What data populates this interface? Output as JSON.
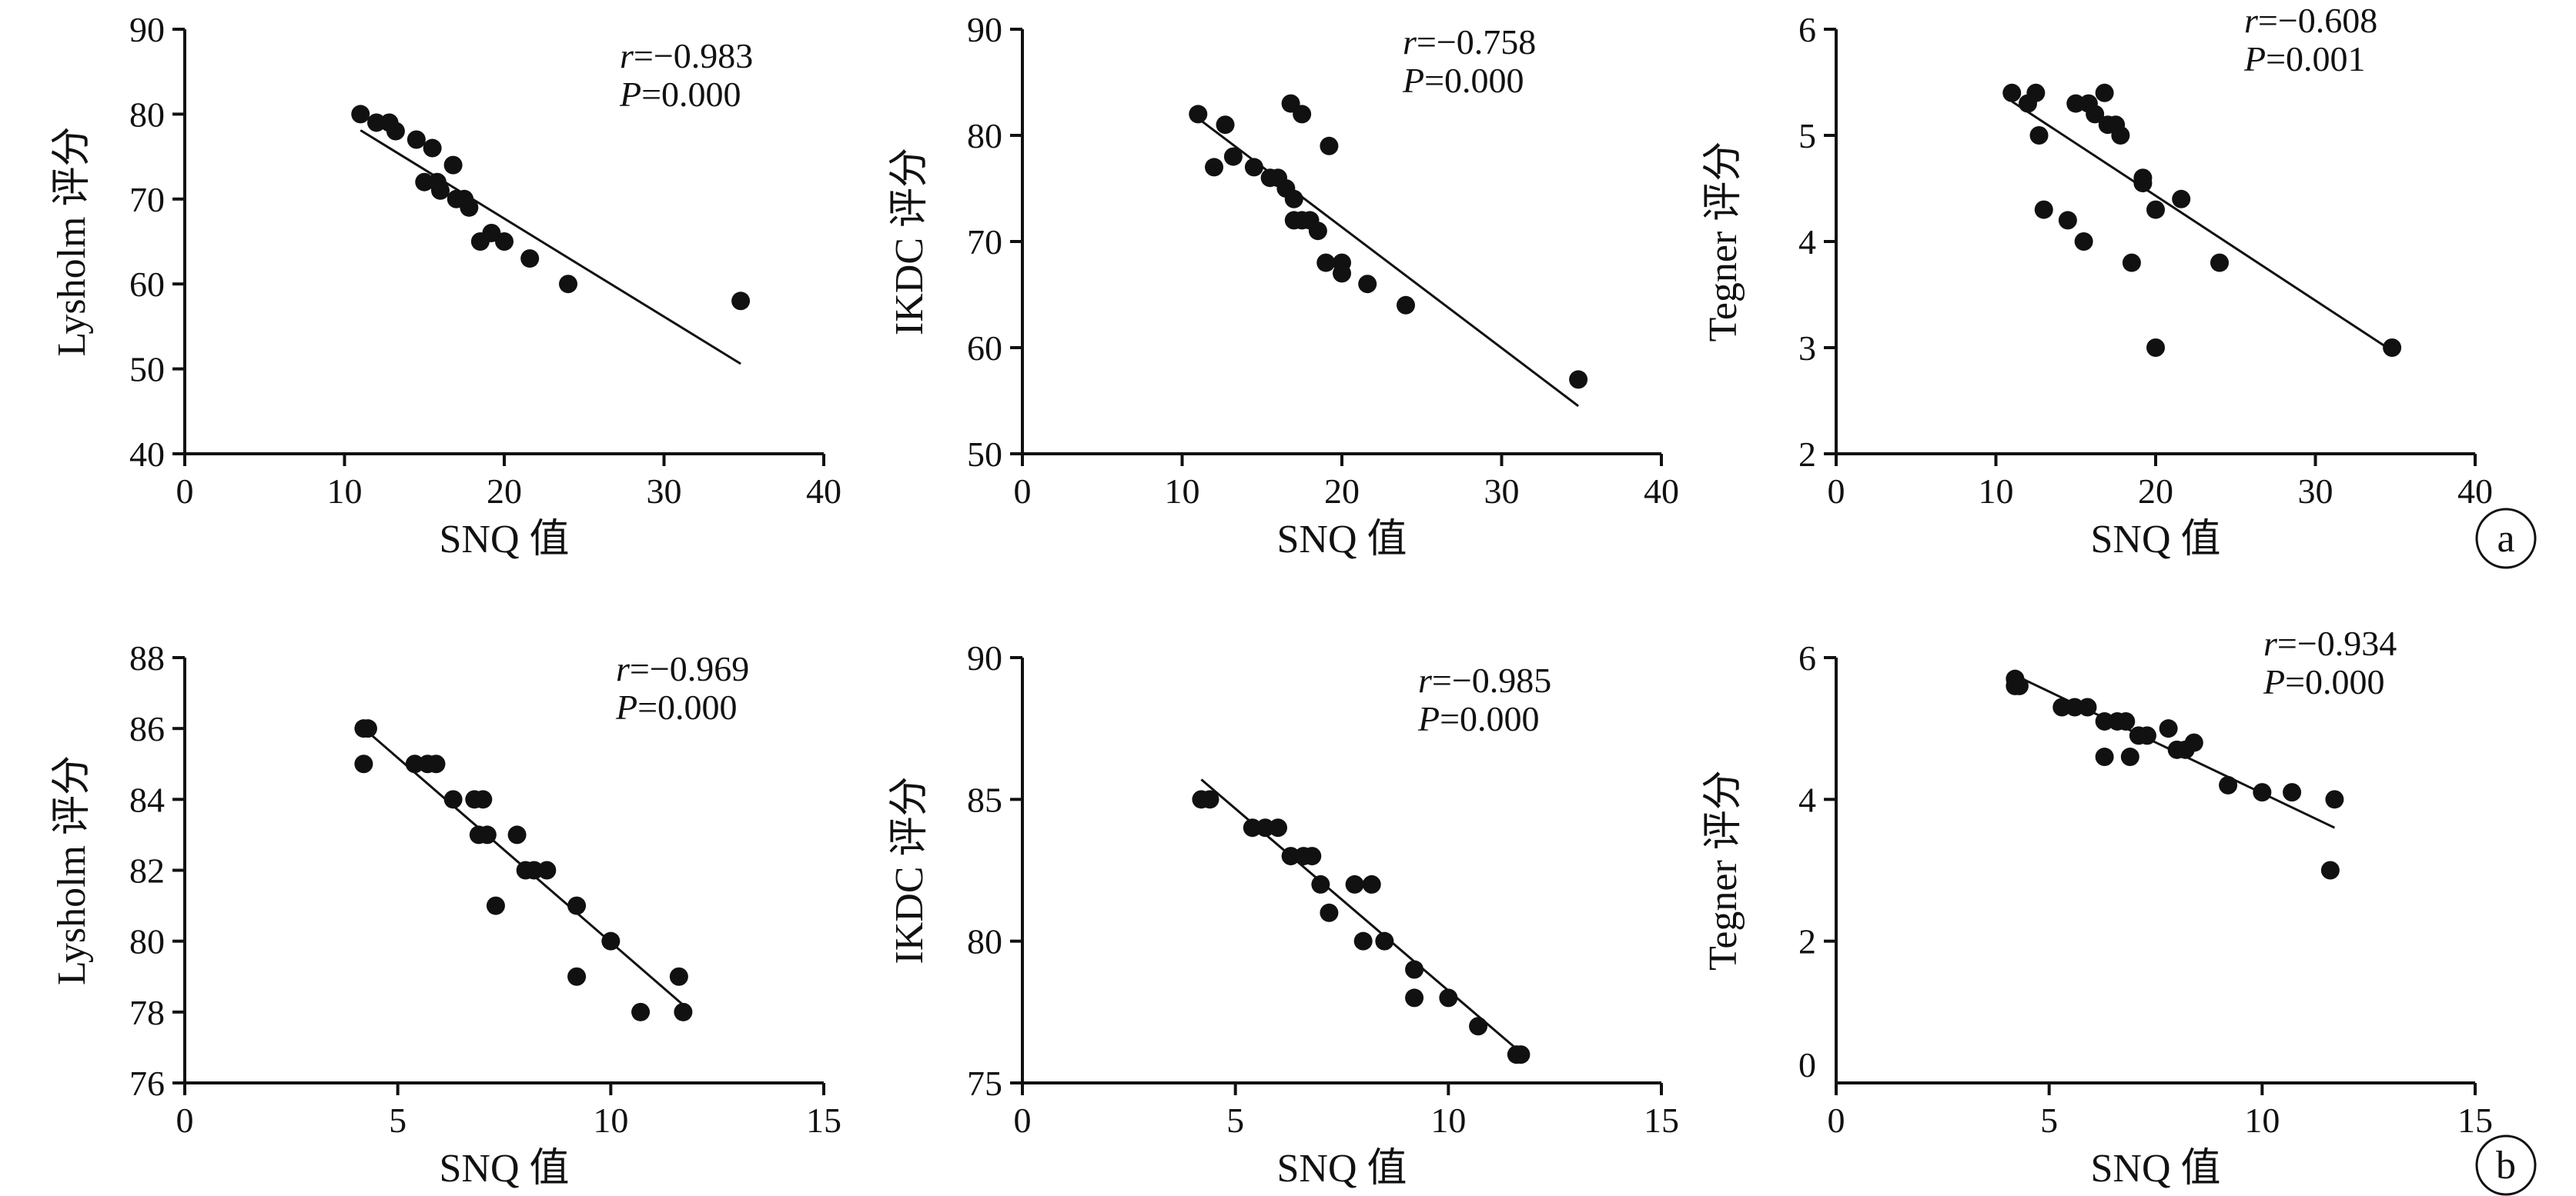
{
  "panel_markers": [
    "a",
    "b"
  ],
  "chart_data": [
    {
      "type": "scatter",
      "xlabel": "SNQ 值",
      "ylabel": "Lysholm 评分",
      "xlim": [
        0,
        40
      ],
      "ylim": [
        40,
        90
      ],
      "xticks": [
        "0",
        "10",
        "20",
        "30",
        "40"
      ],
      "yticks": [
        "40",
        "50",
        "60",
        "70",
        "80",
        "90"
      ],
      "stats": {
        "r": "r=−0.983",
        "p": "P=0.000"
      },
      "points": [
        [
          11,
          80
        ],
        [
          12,
          79
        ],
        [
          12.8,
          79
        ],
        [
          13.2,
          78
        ],
        [
          14.5,
          77
        ],
        [
          15.5,
          76
        ],
        [
          15,
          72
        ],
        [
          15.8,
          72
        ],
        [
          16,
          71
        ],
        [
          16.8,
          74
        ],
        [
          17,
          70
        ],
        [
          17.5,
          70
        ],
        [
          17.8,
          69
        ],
        [
          18.5,
          65
        ],
        [
          19.2,
          66
        ],
        [
          20,
          65
        ],
        [
          21.6,
          63
        ],
        [
          24,
          60
        ],
        [
          34.8,
          58
        ]
      ],
      "fit": [
        [
          11,
          78.1
        ],
        [
          34.8,
          50.6
        ]
      ]
    },
    {
      "type": "scatter",
      "xlabel": "SNQ 值",
      "ylabel": "IKDC 评分",
      "xlim": [
        0,
        40
      ],
      "ylim": [
        50,
        90
      ],
      "xticks": [
        "0",
        "10",
        "20",
        "30",
        "40"
      ],
      "yticks": [
        "50",
        "60",
        "70",
        "80",
        "90"
      ],
      "stats": {
        "r": "r=−0.758",
        "p": "P=0.000"
      },
      "points": [
        [
          11,
          82
        ],
        [
          12,
          77
        ],
        [
          12.7,
          81
        ],
        [
          13.2,
          78
        ],
        [
          14.5,
          77
        ],
        [
          15.5,
          76
        ],
        [
          16,
          76
        ],
        [
          16.5,
          75
        ],
        [
          17,
          74
        ],
        [
          16.8,
          83
        ],
        [
          17.5,
          82
        ],
        [
          17,
          72
        ],
        [
          17.5,
          72
        ],
        [
          18,
          72
        ],
        [
          18.5,
          71
        ],
        [
          19,
          68
        ],
        [
          19.2,
          79
        ],
        [
          20,
          68
        ],
        [
          20,
          67
        ],
        [
          21.6,
          66
        ],
        [
          24,
          64
        ],
        [
          34.8,
          57
        ]
      ],
      "fit": [
        [
          11,
          81.6
        ],
        [
          34.8,
          54.5
        ]
      ]
    },
    {
      "type": "scatter",
      "xlabel": "SNQ 值",
      "ylabel": "Tegner 评分",
      "xlim": [
        0,
        40
      ],
      "ylim": [
        2,
        6
      ],
      "xticks": [
        "0",
        "10",
        "20",
        "30",
        "40"
      ],
      "yticks": [
        "2",
        "3",
        "4",
        "5",
        "6"
      ],
      "stats": {
        "r": "r=−0.608",
        "p": "P=0.001"
      },
      "points": [
        [
          11,
          5.4
        ],
        [
          12,
          5.3
        ],
        [
          12.5,
          5.4
        ],
        [
          12.7,
          5.0
        ],
        [
          13,
          4.3
        ],
        [
          14.5,
          4.2
        ],
        [
          15,
          5.3
        ],
        [
          15.5,
          4.0
        ],
        [
          15.8,
          5.3
        ],
        [
          16.2,
          5.2
        ],
        [
          16.8,
          5.4
        ],
        [
          17,
          5.1
        ],
        [
          17.5,
          5.1
        ],
        [
          17.8,
          5.0
        ],
        [
          18.5,
          3.8
        ],
        [
          19.2,
          4.6
        ],
        [
          19.2,
          4.55
        ],
        [
          20,
          4.3
        ],
        [
          20,
          3.0
        ],
        [
          21.6,
          4.4
        ],
        [
          24,
          3.8
        ],
        [
          34.8,
          3.0
        ]
      ],
      "fit": [
        [
          11,
          5.32
        ],
        [
          34.8,
          2.97
        ]
      ]
    },
    {
      "type": "scatter",
      "xlabel": "SNQ 值",
      "ylabel": "Lysholm 评分",
      "xlim": [
        0,
        15
      ],
      "ylim": [
        76,
        88
      ],
      "xticks": [
        "0",
        "5",
        "10",
        "15"
      ],
      "yticks": [
        "76",
        "78",
        "80",
        "82",
        "84",
        "86",
        "88"
      ],
      "stats": {
        "r": "r=−0.969",
        "p": "P=0.000"
      },
      "points": [
        [
          4.2,
          86
        ],
        [
          4.3,
          86
        ],
        [
          4.2,
          85
        ],
        [
          5.4,
          85
        ],
        [
          5.7,
          85
        ],
        [
          5.9,
          85
        ],
        [
          6.3,
          84
        ],
        [
          6.8,
          84
        ],
        [
          7,
          84
        ],
        [
          6.9,
          83
        ],
        [
          7.1,
          83
        ],
        [
          7.3,
          81
        ],
        [
          7.8,
          83
        ],
        [
          8,
          82
        ],
        [
          8.2,
          82
        ],
        [
          8.5,
          82
        ],
        [
          9.2,
          81
        ],
        [
          9.2,
          79
        ],
        [
          10,
          80
        ],
        [
          10.7,
          78
        ],
        [
          11.6,
          79
        ],
        [
          11.7,
          78
        ]
      ],
      "fit": [
        [
          4.3,
          85.9
        ],
        [
          11.7,
          78.2
        ]
      ]
    },
    {
      "type": "scatter",
      "xlabel": "SNQ 值",
      "ylabel": "IKDC 评分",
      "xlim": [
        0,
        15
      ],
      "ylim": [
        75,
        90
      ],
      "xticks": [
        "0",
        "5",
        "10",
        "15"
      ],
      "yticks": [
        "75",
        "80",
        "85",
        "90"
      ],
      "stats": {
        "r": "r=−0.985",
        "p": "P=0.000"
      },
      "points": [
        [
          4.2,
          85
        ],
        [
          4.4,
          85
        ],
        [
          5.4,
          84
        ],
        [
          5.7,
          84
        ],
        [
          6,
          84
        ],
        [
          6.3,
          83
        ],
        [
          6.6,
          83
        ],
        [
          6.8,
          83
        ],
        [
          7,
          82
        ],
        [
          7.2,
          81
        ],
        [
          7.8,
          82
        ],
        [
          8,
          80
        ],
        [
          8.2,
          82
        ],
        [
          8.5,
          80
        ],
        [
          9.2,
          79
        ],
        [
          9.2,
          78
        ],
        [
          10,
          78
        ],
        [
          10.7,
          77
        ],
        [
          11.6,
          76
        ],
        [
          11.7,
          76
        ]
      ],
      "fit": [
        [
          4.2,
          85.7
        ],
        [
          11.6,
          76.2
        ]
      ]
    },
    {
      "type": "scatter",
      "xlabel": "SNQ 值",
      "ylabel": "Tegner 评分",
      "xlim": [
        0,
        15
      ],
      "ylim": [
        0,
        6
      ],
      "xticks": [
        "0",
        "5",
        "10",
        "15"
      ],
      "yticks": [
        "0",
        "2",
        "4",
        "6"
      ],
      "stats": {
        "r": "r=−0.934",
        "p": "P=0.000"
      },
      "points": [
        [
          4.2,
          5.7
        ],
        [
          4.2,
          5.6
        ],
        [
          4.3,
          5.6
        ],
        [
          5.3,
          5.3
        ],
        [
          5.6,
          5.3
        ],
        [
          5.9,
          5.3
        ],
        [
          6.3,
          5.1
        ],
        [
          6.3,
          4.6
        ],
        [
          6.6,
          5.1
        ],
        [
          6.8,
          5.1
        ],
        [
          6.9,
          4.6
        ],
        [
          7.1,
          4.9
        ],
        [
          7.3,
          4.9
        ],
        [
          7.8,
          5.0
        ],
        [
          8,
          4.7
        ],
        [
          8.2,
          4.7
        ],
        [
          8.4,
          4.8
        ],
        [
          9.2,
          4.2
        ],
        [
          10,
          4.1
        ],
        [
          10.7,
          4.1
        ],
        [
          11.6,
          3.0
        ],
        [
          11.7,
          4.0
        ]
      ],
      "fit": [
        [
          4.2,
          5.75
        ],
        [
          11.7,
          3.6
        ]
      ]
    }
  ]
}
